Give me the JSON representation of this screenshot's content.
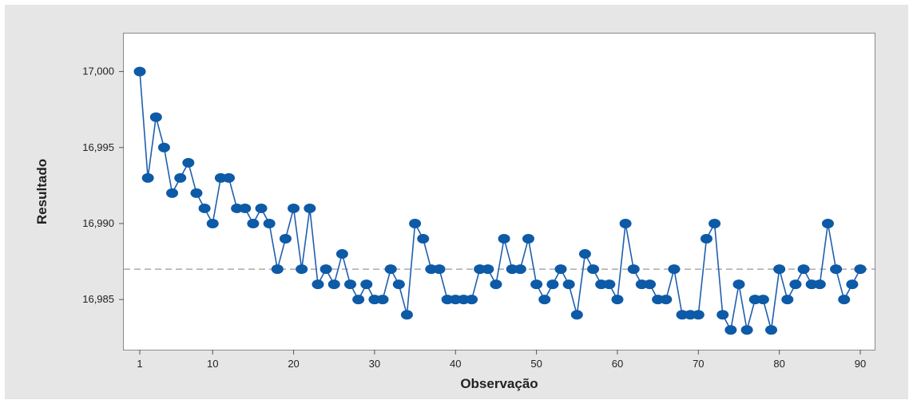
{
  "chart_data": {
    "type": "line",
    "title": "",
    "xlabel": "Observação",
    "ylabel": "Resultado",
    "xlim": [
      0,
      91
    ],
    "ylim": [
      16.9817,
      17.0025
    ],
    "xticks": [
      1,
      10,
      20,
      30,
      40,
      50,
      60,
      70,
      80,
      90
    ],
    "xtick_labels": [
      "1",
      "10",
      "20",
      "30",
      "40",
      "50",
      "60",
      "70",
      "80",
      "90"
    ],
    "yticks": [
      16.985,
      16.99,
      16.995,
      17.0
    ],
    "ytick_labels": [
      "16,985",
      "16,990",
      "16,995",
      "17,000"
    ],
    "grid": false,
    "reference_line": {
      "y": 16.987,
      "style": "dashed"
    },
    "marker": "filled circle",
    "series": [
      {
        "color": "#0d5aa7",
        "x": [
          1,
          2,
          3,
          4,
          5,
          6,
          7,
          8,
          9,
          10,
          11,
          12,
          13,
          14,
          15,
          16,
          17,
          18,
          19,
          20,
          21,
          22,
          23,
          24,
          25,
          26,
          27,
          28,
          29,
          30,
          31,
          32,
          33,
          34,
          35,
          36,
          37,
          38,
          39,
          40,
          41,
          42,
          43,
          44,
          45,
          46,
          47,
          48,
          49,
          50,
          51,
          52,
          53,
          54,
          55,
          56,
          57,
          58,
          59,
          60,
          61,
          62,
          63,
          64,
          65,
          66,
          67,
          68,
          69,
          70,
          71,
          72,
          73,
          74,
          75,
          76,
          77,
          78,
          79,
          80,
          81,
          82,
          83,
          84,
          85,
          86,
          87,
          88,
          89,
          90
        ],
        "y": [
          17.0,
          16.993,
          16.997,
          16.995,
          16.992,
          16.993,
          16.994,
          16.992,
          16.991,
          16.99,
          16.993,
          16.993,
          16.991,
          16.991,
          16.99,
          16.991,
          16.99,
          16.987,
          16.989,
          16.991,
          16.987,
          16.991,
          16.986,
          16.987,
          16.986,
          16.988,
          16.986,
          16.985,
          16.986,
          16.985,
          16.985,
          16.987,
          16.986,
          16.984,
          16.99,
          16.989,
          16.987,
          16.987,
          16.985,
          16.985,
          16.985,
          16.985,
          16.987,
          16.987,
          16.986,
          16.989,
          16.987,
          16.987,
          16.989,
          16.986,
          16.985,
          16.986,
          16.987,
          16.986,
          16.984,
          16.988,
          16.987,
          16.986,
          16.986,
          16.985,
          16.99,
          16.987,
          16.986,
          16.986,
          16.985,
          16.985,
          16.987,
          16.984,
          16.984,
          16.984,
          16.989,
          16.99,
          16.984,
          16.983,
          16.986,
          16.983,
          16.985,
          16.985,
          16.983,
          16.987,
          16.985,
          16.986,
          16.987,
          16.986,
          16.986,
          16.99,
          16.987,
          16.985,
          16.986,
          16.987
        ]
      }
    ]
  }
}
